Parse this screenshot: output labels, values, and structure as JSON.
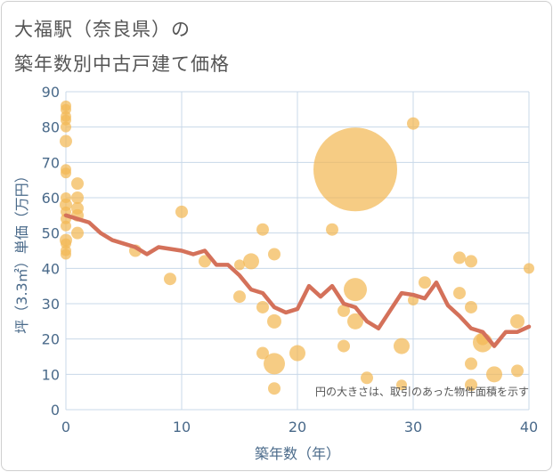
{
  "title": {
    "line1": "大福駅（奈良県）の",
    "line2": "築年数別中古戸建て価格"
  },
  "chart_data": {
    "type": "scatter",
    "title": "大福駅（奈良県）の 築年数別中古戸建て価格",
    "xlabel": "築年数（年）",
    "ylabel": "坪（3.3㎡）単価（万円）",
    "xlim": [
      0,
      40
    ],
    "ylim": [
      0,
      90
    ],
    "xticks": [
      0,
      10,
      20,
      30,
      40
    ],
    "yticks": [
      0,
      10,
      20,
      30,
      40,
      50,
      60,
      70,
      80,
      90
    ],
    "grid": true,
    "annotation": "円の大きさは、取引のあった物件面積を示す",
    "colors": {
      "bubble": "#f3b855",
      "line": "#d4715a",
      "grid": "#c8d8e8",
      "axis_text": "#4a6a8a"
    },
    "bubbles": [
      {
        "x": 0,
        "y": 86,
        "size": 6
      },
      {
        "x": 0,
        "y": 85,
        "size": 6
      },
      {
        "x": 0,
        "y": 83,
        "size": 6
      },
      {
        "x": 0,
        "y": 82,
        "size": 6
      },
      {
        "x": 0,
        "y": 80,
        "size": 6
      },
      {
        "x": 0,
        "y": 76,
        "size": 7
      },
      {
        "x": 0,
        "y": 68,
        "size": 6
      },
      {
        "x": 0,
        "y": 67,
        "size": 6
      },
      {
        "x": 0,
        "y": 60,
        "size": 6
      },
      {
        "x": 0,
        "y": 58,
        "size": 7
      },
      {
        "x": 0,
        "y": 56,
        "size": 6
      },
      {
        "x": 0,
        "y": 54,
        "size": 6
      },
      {
        "x": 0,
        "y": 52,
        "size": 6
      },
      {
        "x": 0,
        "y": 48,
        "size": 7
      },
      {
        "x": 0,
        "y": 47,
        "size": 6
      },
      {
        "x": 0,
        "y": 45,
        "size": 6
      },
      {
        "x": 0,
        "y": 44,
        "size": 6
      },
      {
        "x": 1,
        "y": 64,
        "size": 7
      },
      {
        "x": 1,
        "y": 60,
        "size": 7
      },
      {
        "x": 1,
        "y": 57,
        "size": 7
      },
      {
        "x": 1,
        "y": 55,
        "size": 7
      },
      {
        "x": 1,
        "y": 50,
        "size": 7
      },
      {
        "x": 6,
        "y": 45,
        "size": 7
      },
      {
        "x": 9,
        "y": 37,
        "size": 7
      },
      {
        "x": 10,
        "y": 56,
        "size": 7
      },
      {
        "x": 12,
        "y": 42,
        "size": 7
      },
      {
        "x": 15,
        "y": 41,
        "size": 6
      },
      {
        "x": 15,
        "y": 32,
        "size": 7
      },
      {
        "x": 16,
        "y": 42,
        "size": 9
      },
      {
        "x": 17,
        "y": 51,
        "size": 7
      },
      {
        "x": 17,
        "y": 29,
        "size": 7
      },
      {
        "x": 17,
        "y": 16,
        "size": 7
      },
      {
        "x": 18,
        "y": 44,
        "size": 7
      },
      {
        "x": 18,
        "y": 25,
        "size": 8
      },
      {
        "x": 18,
        "y": 13,
        "size": 12
      },
      {
        "x": 18,
        "y": 6,
        "size": 7
      },
      {
        "x": 20,
        "y": 16,
        "size": 9
      },
      {
        "x": 23,
        "y": 51,
        "size": 7
      },
      {
        "x": 24,
        "y": 28,
        "size": 7
      },
      {
        "x": 24,
        "y": 18,
        "size": 7
      },
      {
        "x": 25,
        "y": 68,
        "size": 47
      },
      {
        "x": 25,
        "y": 34,
        "size": 13
      },
      {
        "x": 25,
        "y": 25,
        "size": 9
      },
      {
        "x": 26,
        "y": 9,
        "size": 7
      },
      {
        "x": 29,
        "y": 18,
        "size": 9
      },
      {
        "x": 29,
        "y": 7,
        "size": 6
      },
      {
        "x": 30,
        "y": 81,
        "size": 7
      },
      {
        "x": 30,
        "y": 31,
        "size": 6
      },
      {
        "x": 31,
        "y": 36,
        "size": 7
      },
      {
        "x": 34,
        "y": 43,
        "size": 7
      },
      {
        "x": 34,
        "y": 33,
        "size": 7
      },
      {
        "x": 35,
        "y": 42,
        "size": 7
      },
      {
        "x": 35,
        "y": 29,
        "size": 7
      },
      {
        "x": 35,
        "y": 13,
        "size": 7
      },
      {
        "x": 35,
        "y": 7,
        "size": 7
      },
      {
        "x": 36,
        "y": 20,
        "size": 7
      },
      {
        "x": 36,
        "y": 19,
        "size": 11
      },
      {
        "x": 37,
        "y": 10,
        "size": 9
      },
      {
        "x": 39,
        "y": 25,
        "size": 8
      },
      {
        "x": 39,
        "y": 11,
        "size": 7
      },
      {
        "x": 40,
        "y": 40,
        "size": 6
      }
    ],
    "trend_line": {
      "x": [
        0,
        1,
        2,
        3,
        4,
        5,
        6,
        7,
        8,
        9,
        10,
        11,
        12,
        13,
        14,
        15,
        16,
        17,
        18,
        19,
        20,
        21,
        22,
        23,
        24,
        25,
        26,
        27,
        28,
        29,
        30,
        31,
        32,
        33,
        34,
        35,
        36,
        37,
        38,
        39,
        40
      ],
      "y": [
        55,
        54,
        53,
        50,
        48,
        47,
        46,
        44,
        46,
        45.5,
        45,
        44,
        45,
        41,
        41,
        38,
        34,
        33,
        29,
        27.5,
        28.5,
        35,
        32,
        35,
        30,
        29,
        25,
        23,
        28,
        33,
        32.5,
        31.5,
        36,
        29.5,
        26.5,
        23,
        22,
        18,
        22,
        22,
        23.5
      ]
    }
  }
}
